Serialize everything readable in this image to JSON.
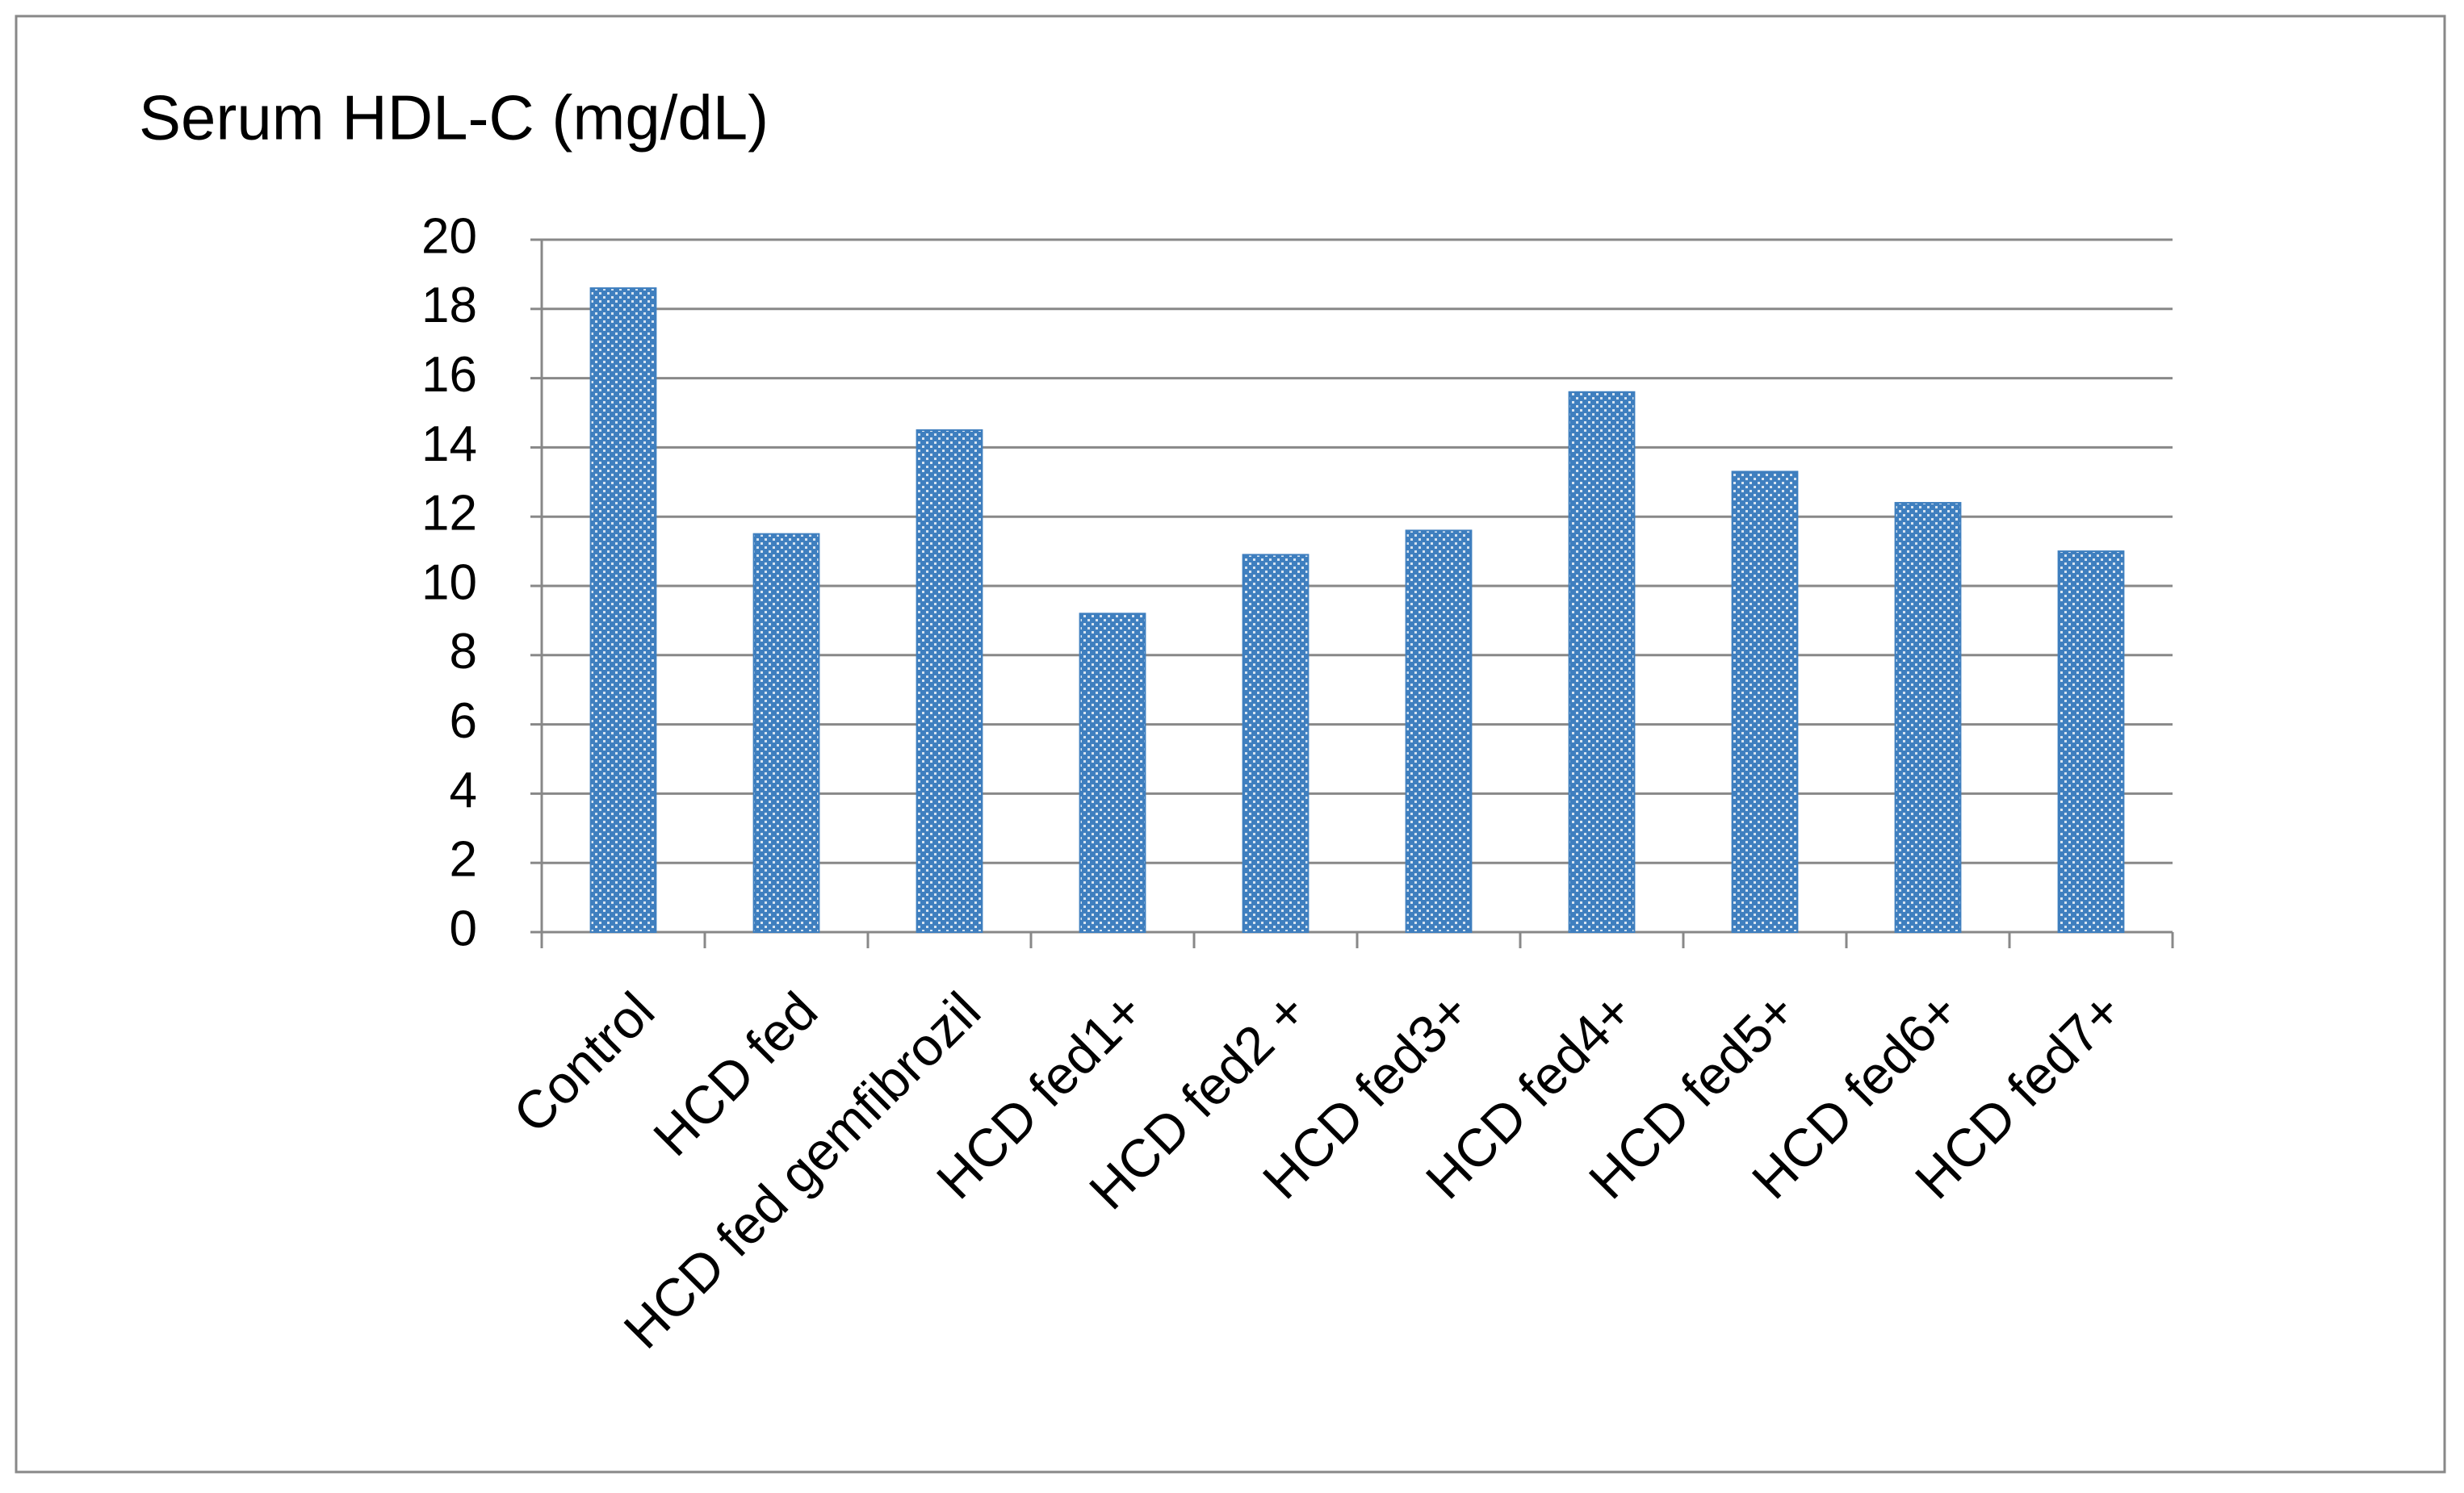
{
  "chart_data": {
    "type": "bar",
    "title": "Serum HDL-C (mg/dL)",
    "categories": [
      "Control",
      "HCD fed",
      "HCD fed gemfibrozil",
      "HCD fed1+",
      "HCD fed2 +",
      "HCD fed3+",
      "HCD fed4+",
      "HCD fed5+",
      "HCD fed6+",
      "HCD fed7+"
    ],
    "values": [
      18.6,
      11.5,
      14.5,
      9.2,
      10.9,
      11.6,
      15.6,
      13.3,
      12.4,
      11.0
    ],
    "color": "#3f7fbf",
    "ylim": [
      0,
      20
    ],
    "yticks": [
      0,
      2,
      4,
      6,
      8,
      10,
      12,
      14,
      16,
      18,
      20
    ],
    "grid": true
  }
}
